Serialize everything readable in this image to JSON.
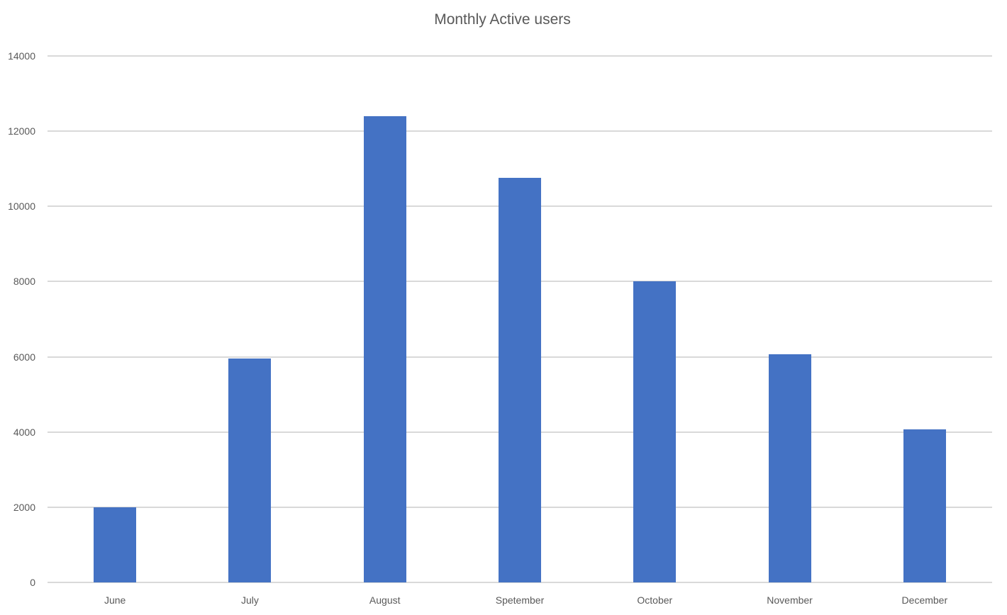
{
  "chart_data": {
    "type": "bar",
    "title": "Monthly Active users",
    "categories": [
      "June",
      "July",
      "August",
      "Spetember",
      "October",
      "November",
      "December"
    ],
    "values": [
      2000,
      5950,
      12400,
      10750,
      8000,
      6075,
      4075
    ],
    "xlabel": "",
    "ylabel": "",
    "ylim": [
      0,
      14000
    ],
    "yticks": [
      0,
      2000,
      4000,
      6000,
      8000,
      10000,
      12000,
      14000
    ],
    "grid": true,
    "legend": "none",
    "bar_color": "#4472C4",
    "gridline_color": "#D9D9D9",
    "text_color": "#595959",
    "background_color": "#FFFFFF"
  }
}
